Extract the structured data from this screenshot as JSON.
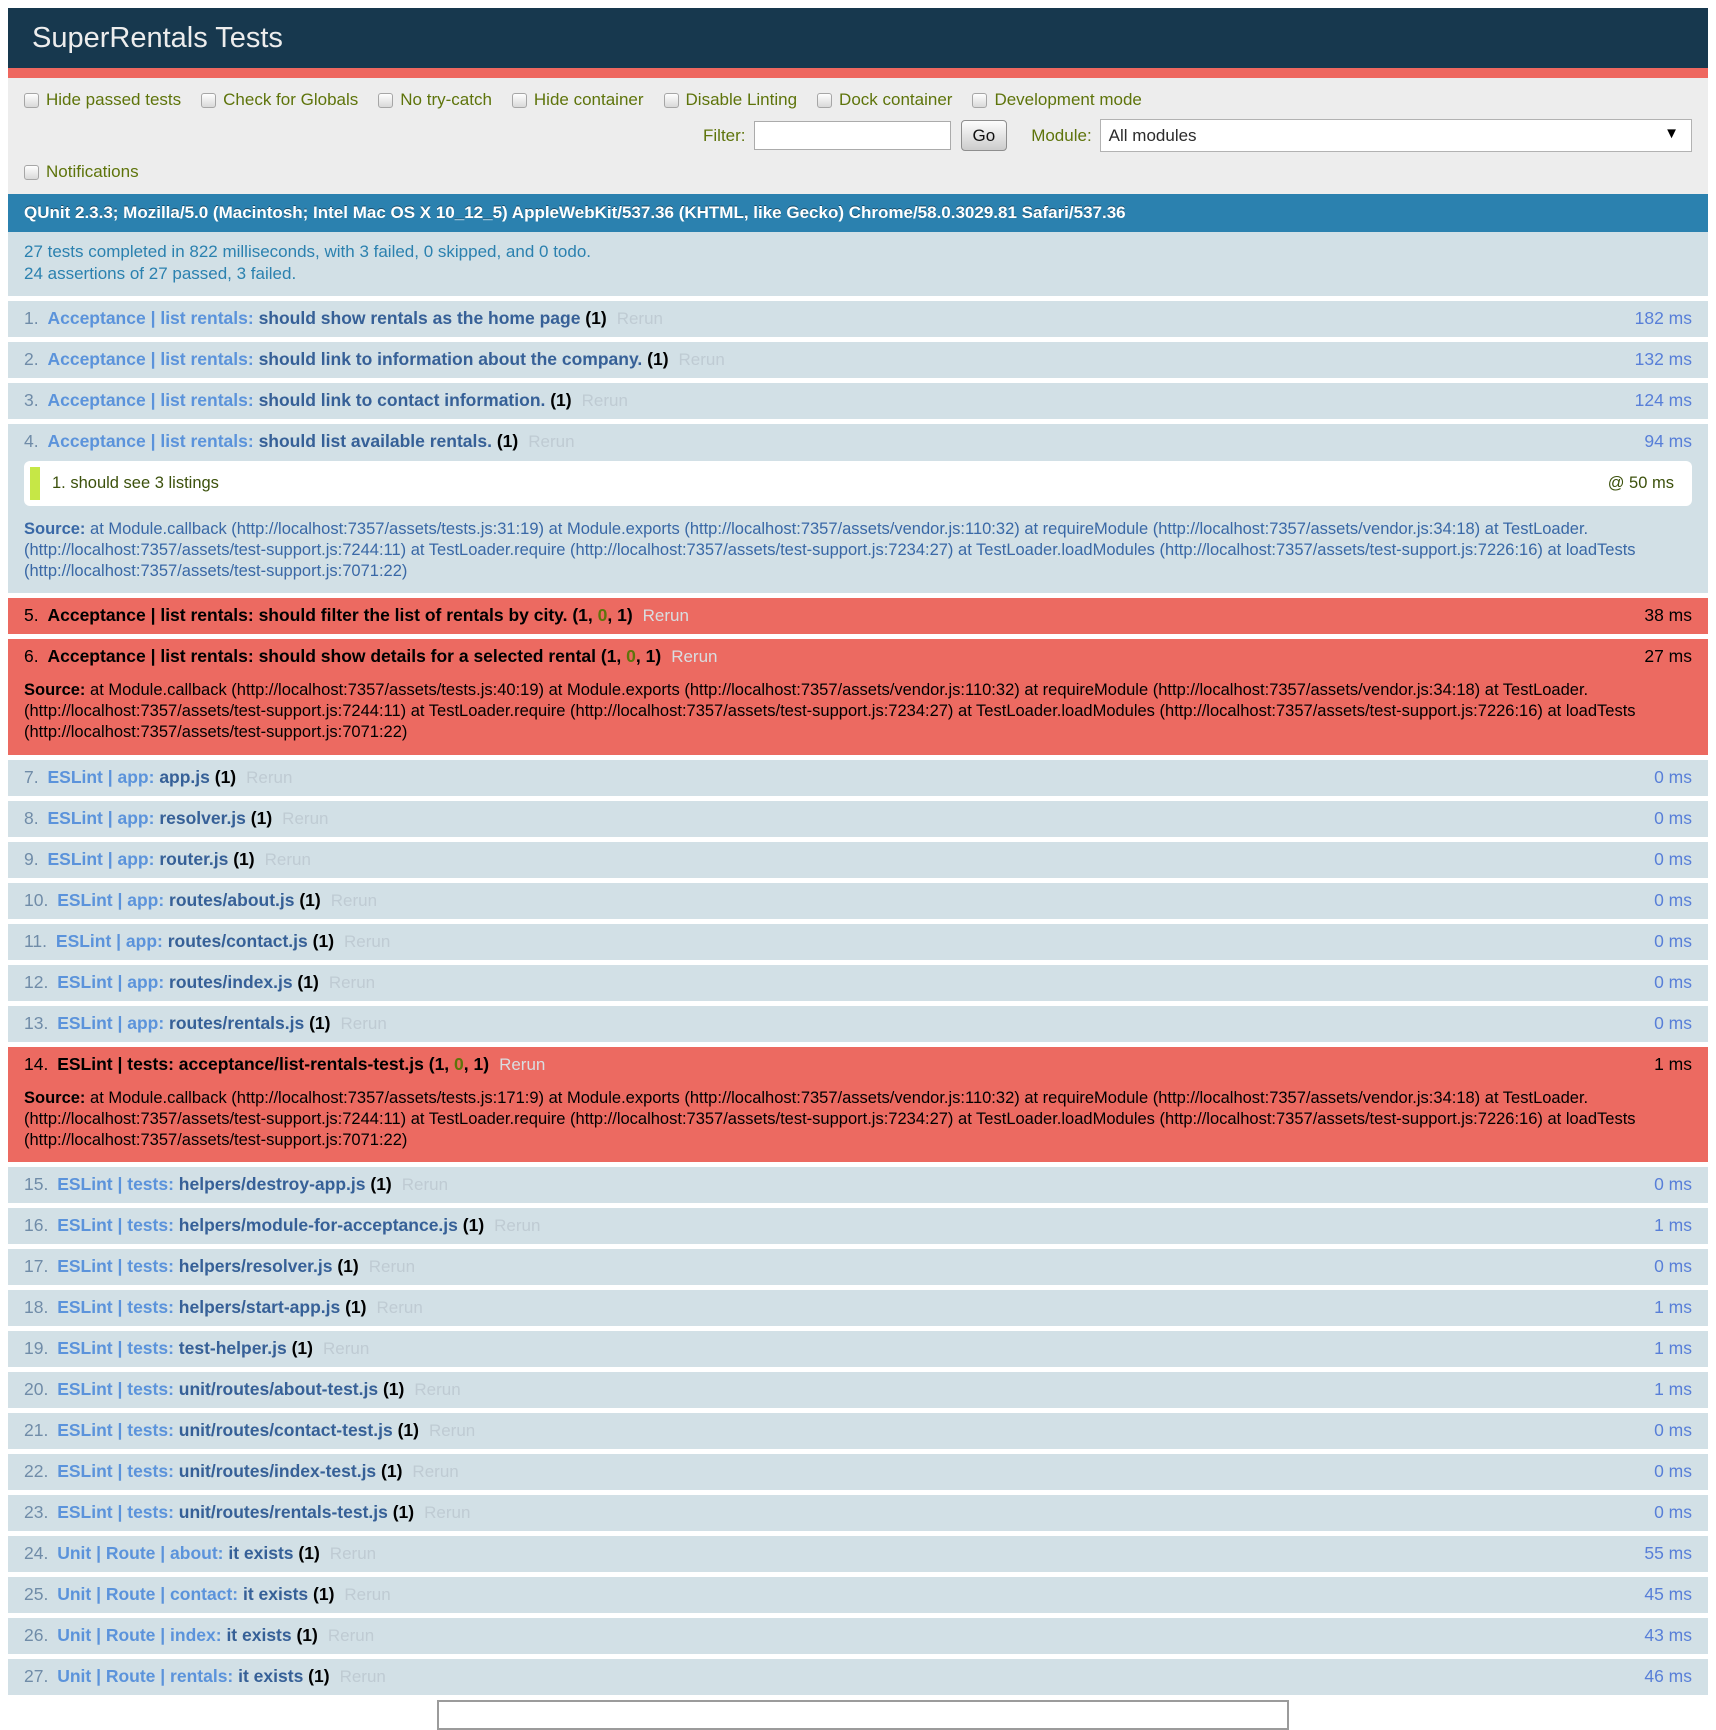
{
  "header": {
    "title": "SuperRentals Tests"
  },
  "colors": {
    "header_bg": "#17384E",
    "accent_red": "#EE675F",
    "fail_row_bg": "#EC6A61",
    "pass_row_bg": "#D2E0E6",
    "banner_bg": "#2B81AF",
    "olive_label": "#5E740B",
    "assert_pass_green": "#C6E746",
    "module_link_blue": "#5B93DB",
    "test_name_blue": "#366097"
  },
  "toolbar": {
    "checkboxes": [
      {
        "label": "Hide passed tests",
        "checked": false
      },
      {
        "label": "Check for Globals",
        "checked": false
      },
      {
        "label": "No try-catch",
        "checked": false
      },
      {
        "label": "Hide container",
        "checked": false
      },
      {
        "label": "Disable Linting",
        "checked": false
      },
      {
        "label": "Dock container",
        "checked": false
      },
      {
        "label": "Development mode",
        "checked": false
      }
    ],
    "notifications": {
      "label": "Notifications",
      "checked": false
    },
    "filter_label": "Filter:",
    "filter_value": "",
    "go_label": "Go",
    "module_label": "Module:",
    "module_value": "All modules",
    "chevron_icon": "▼"
  },
  "banner": {
    "user_agent": "QUnit 2.3.3; Mozilla/5.0 (Macintosh; Intel Mac OS X 10_12_5) AppleWebKit/537.36 (KHTML, like Gecko) Chrome/58.0.3029.81 Safari/537.36"
  },
  "summary": {
    "line1": "27 tests completed in 822 milliseconds, with 3 failed, 0 skipped, and 0 todo.",
    "line2": "24 assertions of 27 passed, 3 failed."
  },
  "rerun_label": "Rerun",
  "source_label": "Source: ",
  "tests": [
    {
      "number": "1.",
      "module": "Acceptance | list rentals:",
      "name": "should show rentals as the home page",
      "status": "pass",
      "counts": {
        "total": "1"
      },
      "runtime": "182 ms"
    },
    {
      "number": "2.",
      "module": "Acceptance | list rentals:",
      "name": "should link to information about the company.",
      "status": "pass",
      "counts": {
        "total": "1"
      },
      "runtime": "132 ms"
    },
    {
      "number": "3.",
      "module": "Acceptance | list rentals:",
      "name": "should link to contact information.",
      "status": "pass",
      "counts": {
        "total": "1"
      },
      "runtime": "124 ms"
    },
    {
      "number": "4.",
      "module": "Acceptance | list rentals:",
      "name": "should list available rentals.",
      "status": "pass",
      "counts": {
        "total": "1"
      },
      "runtime": "94 ms",
      "assertions": [
        {
          "number": "1.",
          "message": "should see 3 listings",
          "runtime": "@ 50 ms"
        }
      ],
      "source": "at Module.callback (http://localhost:7357/assets/tests.js:31:19) at Module.exports (http://localhost:7357/assets/vendor.js:110:32) at requireModule (http://localhost:7357/assets/vendor.js:34:18) at TestLoader. (http://localhost:7357/assets/test-support.js:7244:11) at TestLoader.require (http://localhost:7357/assets/test-support.js:7234:27) at TestLoader.loadModules (http://localhost:7357/assets/test-support.js:7226:16) at loadTests (http://localhost:7357/assets/test-support.js:7071:22)"
    },
    {
      "number": "5.",
      "module": "Acceptance | list rentals:",
      "name": "should filter the list of rentals by city.",
      "status": "fail",
      "counts": {
        "failed": "1",
        "passed": "0",
        "total": "1"
      },
      "runtime": "38 ms"
    },
    {
      "number": "6.",
      "module": "Acceptance | list rentals:",
      "name": "should show details for a selected rental",
      "status": "fail",
      "counts": {
        "failed": "1",
        "passed": "0",
        "total": "1"
      },
      "runtime": "27 ms",
      "source": "at Module.callback (http://localhost:7357/assets/tests.js:40:19) at Module.exports (http://localhost:7357/assets/vendor.js:110:32) at requireModule (http://localhost:7357/assets/vendor.js:34:18) at TestLoader. (http://localhost:7357/assets/test-support.js:7244:11) at TestLoader.require (http://localhost:7357/assets/test-support.js:7234:27) at TestLoader.loadModules (http://localhost:7357/assets/test-support.js:7226:16) at loadTests (http://localhost:7357/assets/test-support.js:7071:22)"
    },
    {
      "number": "7.",
      "module": "ESLint | app:",
      "name": "app.js",
      "status": "pass",
      "counts": {
        "total": "1"
      },
      "runtime": "0 ms"
    },
    {
      "number": "8.",
      "module": "ESLint | app:",
      "name": "resolver.js",
      "status": "pass",
      "counts": {
        "total": "1"
      },
      "runtime": "0 ms"
    },
    {
      "number": "9.",
      "module": "ESLint | app:",
      "name": "router.js",
      "status": "pass",
      "counts": {
        "total": "1"
      },
      "runtime": "0 ms"
    },
    {
      "number": "10.",
      "module": "ESLint | app:",
      "name": "routes/about.js",
      "status": "pass",
      "counts": {
        "total": "1"
      },
      "runtime": "0 ms"
    },
    {
      "number": "11.",
      "module": "ESLint | app:",
      "name": "routes/contact.js",
      "status": "pass",
      "counts": {
        "total": "1"
      },
      "runtime": "0 ms"
    },
    {
      "number": "12.",
      "module": "ESLint | app:",
      "name": "routes/index.js",
      "status": "pass",
      "counts": {
        "total": "1"
      },
      "runtime": "0 ms"
    },
    {
      "number": "13.",
      "module": "ESLint | app:",
      "name": "routes/rentals.js",
      "status": "pass",
      "counts": {
        "total": "1"
      },
      "runtime": "0 ms"
    },
    {
      "number": "14.",
      "module": "ESLint | tests:",
      "name": "acceptance/list-rentals-test.js",
      "status": "fail",
      "counts": {
        "failed": "1",
        "passed": "0",
        "total": "1"
      },
      "runtime": "1 ms",
      "source": "at Module.callback (http://localhost:7357/assets/tests.js:171:9) at Module.exports (http://localhost:7357/assets/vendor.js:110:32) at requireModule (http://localhost:7357/assets/vendor.js:34:18) at TestLoader. (http://localhost:7357/assets/test-support.js:7244:11) at TestLoader.require (http://localhost:7357/assets/test-support.js:7234:27) at TestLoader.loadModules (http://localhost:7357/assets/test-support.js:7226:16) at loadTests (http://localhost:7357/assets/test-support.js:7071:22)"
    },
    {
      "number": "15.",
      "module": "ESLint | tests:",
      "name": "helpers/destroy-app.js",
      "status": "pass",
      "counts": {
        "total": "1"
      },
      "runtime": "0 ms"
    },
    {
      "number": "16.",
      "module": "ESLint | tests:",
      "name": "helpers/module-for-acceptance.js",
      "status": "pass",
      "counts": {
        "total": "1"
      },
      "runtime": "1 ms"
    },
    {
      "number": "17.",
      "module": "ESLint | tests:",
      "name": "helpers/resolver.js",
      "status": "pass",
      "counts": {
        "total": "1"
      },
      "runtime": "0 ms"
    },
    {
      "number": "18.",
      "module": "ESLint | tests:",
      "name": "helpers/start-app.js",
      "status": "pass",
      "counts": {
        "total": "1"
      },
      "runtime": "1 ms"
    },
    {
      "number": "19.",
      "module": "ESLint | tests:",
      "name": "test-helper.js",
      "status": "pass",
      "counts": {
        "total": "1"
      },
      "runtime": "1 ms"
    },
    {
      "number": "20.",
      "module": "ESLint | tests:",
      "name": "unit/routes/about-test.js",
      "status": "pass",
      "counts": {
        "total": "1"
      },
      "runtime": "1 ms"
    },
    {
      "number": "21.",
      "module": "ESLint | tests:",
      "name": "unit/routes/contact-test.js",
      "status": "pass",
      "counts": {
        "total": "1"
      },
      "runtime": "0 ms"
    },
    {
      "number": "22.",
      "module": "ESLint | tests:",
      "name": "unit/routes/index-test.js",
      "status": "pass",
      "counts": {
        "total": "1"
      },
      "runtime": "0 ms"
    },
    {
      "number": "23.",
      "module": "ESLint | tests:",
      "name": "unit/routes/rentals-test.js",
      "status": "pass",
      "counts": {
        "total": "1"
      },
      "runtime": "0 ms"
    },
    {
      "number": "24.",
      "module": "Unit | Route | about:",
      "name": "it exists",
      "status": "pass",
      "counts": {
        "total": "1"
      },
      "runtime": "55 ms"
    },
    {
      "number": "25.",
      "module": "Unit | Route | contact:",
      "name": "it exists",
      "status": "pass",
      "counts": {
        "total": "1"
      },
      "runtime": "45 ms"
    },
    {
      "number": "26.",
      "module": "Unit | Route | index:",
      "name": "it exists",
      "status": "pass",
      "counts": {
        "total": "1"
      },
      "runtime": "43 ms"
    },
    {
      "number": "27.",
      "module": "Unit | Route | rentals:",
      "name": "it exists",
      "status": "pass",
      "counts": {
        "total": "1"
      },
      "runtime": "46 ms"
    }
  ]
}
